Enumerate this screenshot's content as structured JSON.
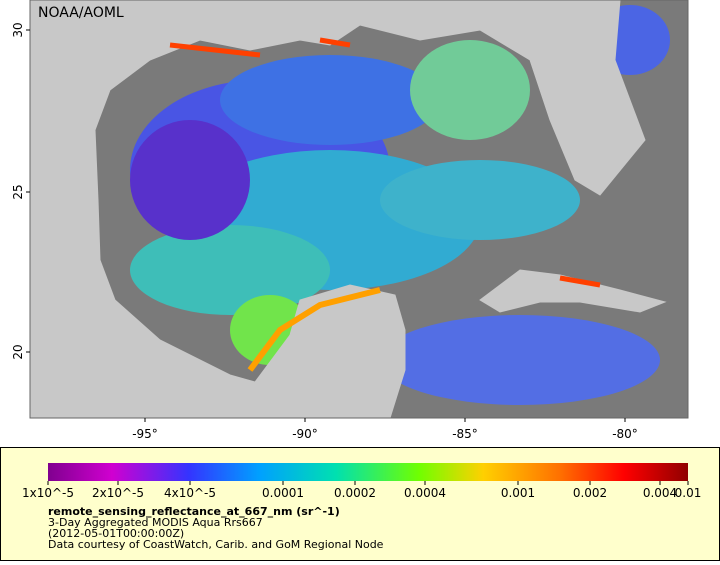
{
  "map": {
    "watermark": "NOAA/AOML",
    "lat_ticks": [
      "20",
      "25",
      "30"
    ],
    "lon_ticks": [
      "-95°",
      "-90°",
      "-85°",
      "-80°"
    ]
  },
  "legend": {
    "colorbar_labels": [
      "1x10^-5",
      "2x10^-5",
      "4x10^-5",
      "0.0001",
      "0.0002",
      "0.0004",
      "0.001",
      "0.002",
      "0.004",
      "0.01"
    ],
    "variable": "remote_sensing_reflectance_at_667_nm (sr^-1)",
    "description": "3-Day Aggregated MODIS Aqua Rrs667",
    "time": "(2012-05-01T00:00:00Z)",
    "credit": "Data courtesy of CoastWatch, Carib. and GoM Regional Node"
  }
}
